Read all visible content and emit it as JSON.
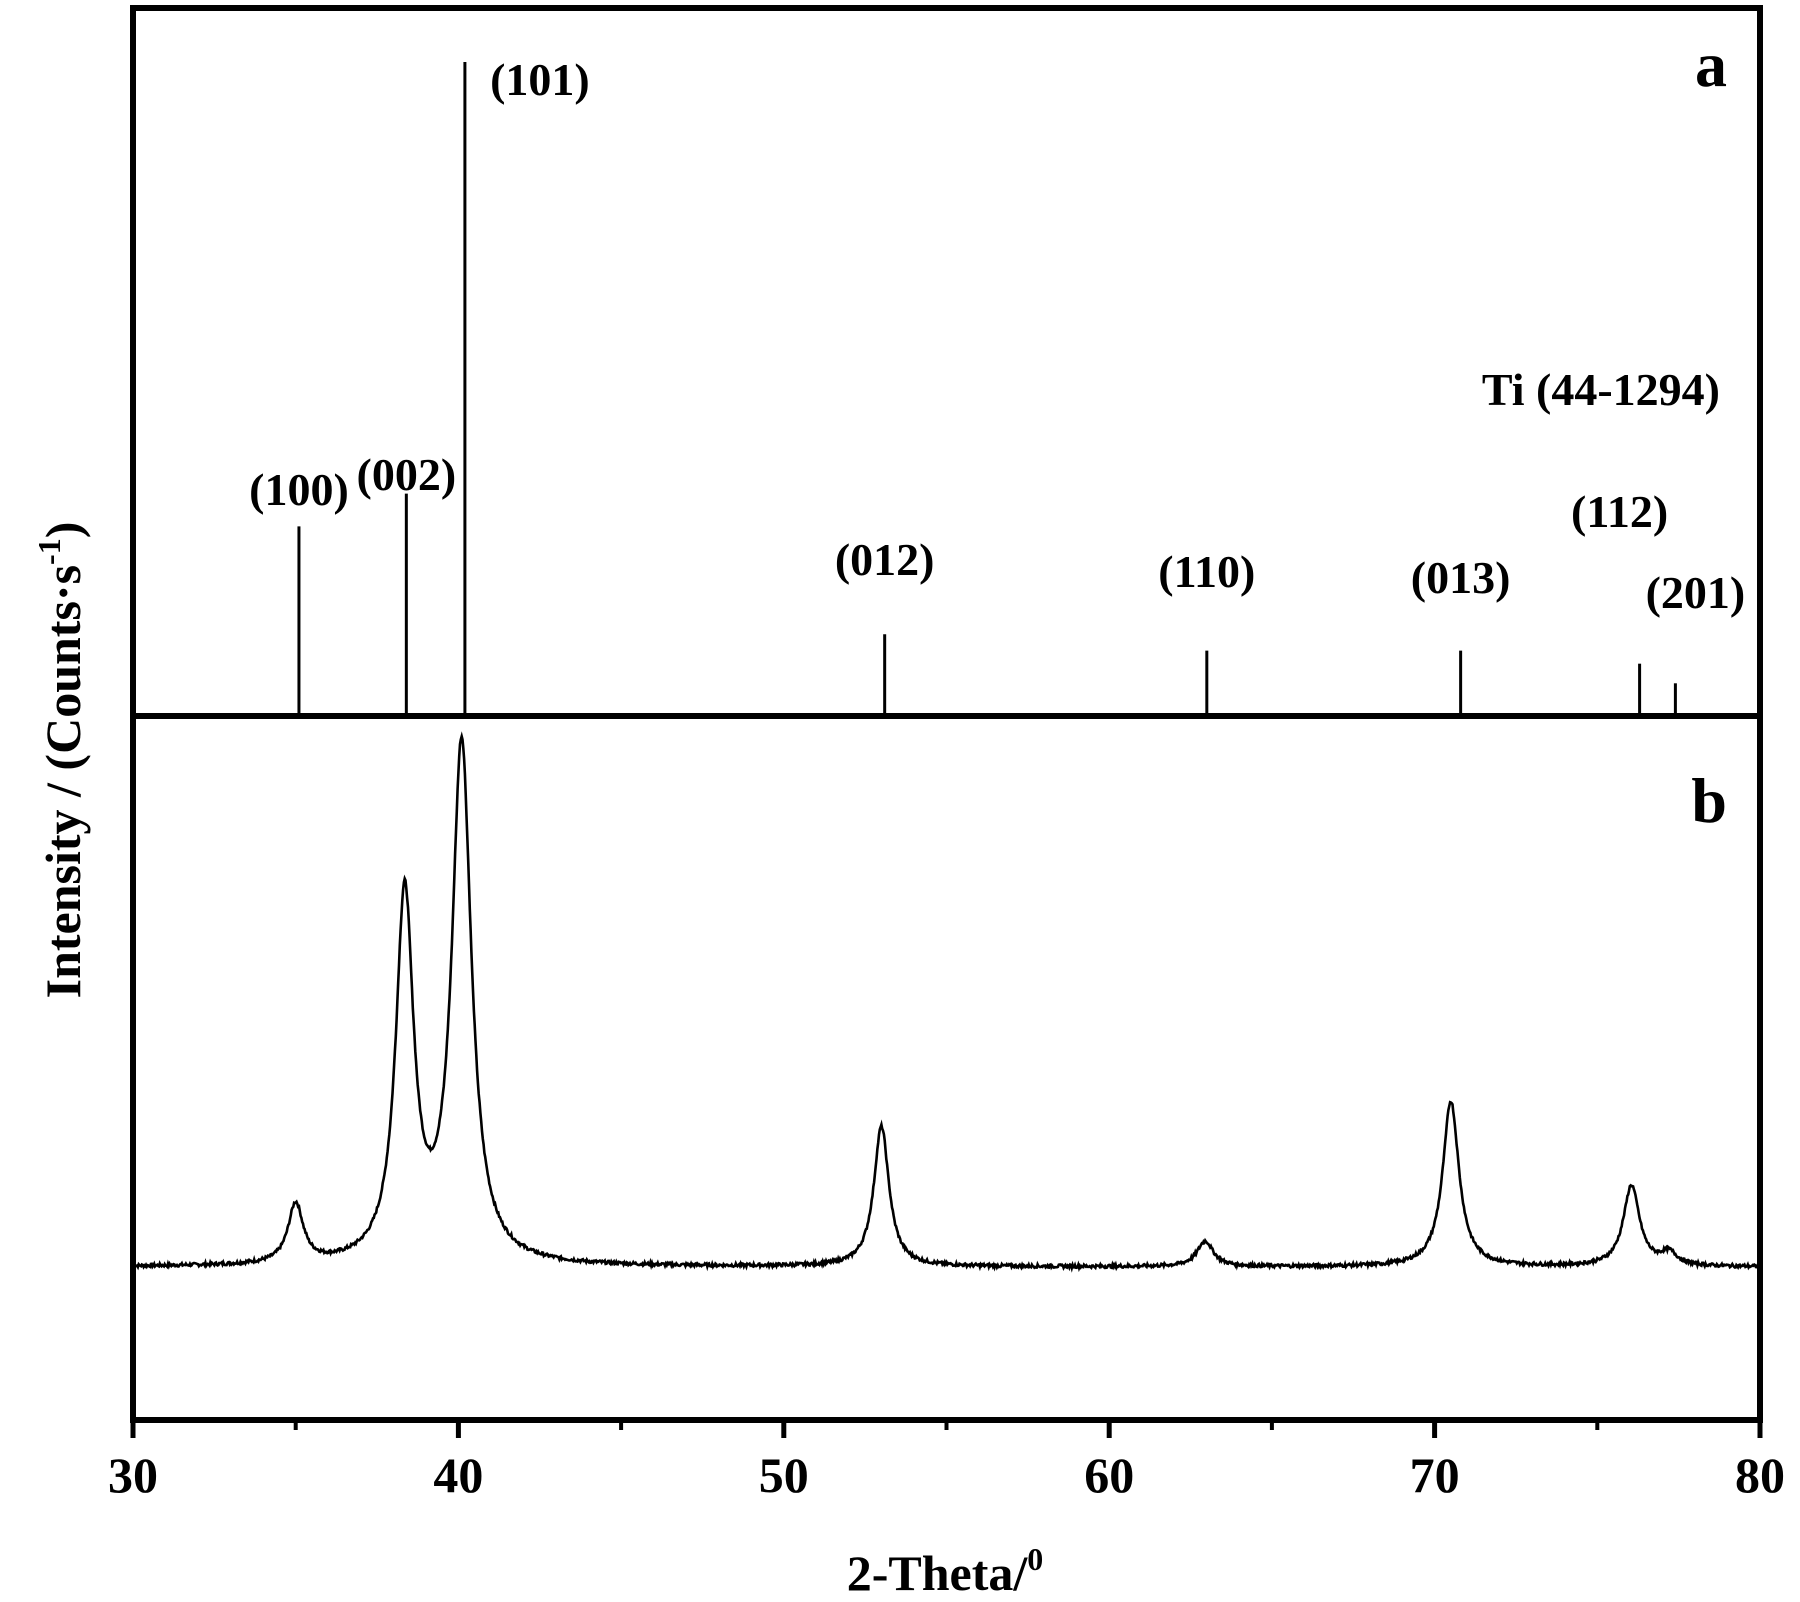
{
  "chart_data": [
    {
      "panel": "a",
      "type": "bar",
      "reference_label": "Ti (44-1294)",
      "sticks": [
        {
          "x": 35.1,
          "height": 0.29,
          "label": "(100)"
        },
        {
          "x": 38.4,
          "height": 0.34,
          "label": "(002)"
        },
        {
          "x": 40.2,
          "height": 1.0,
          "label": "(101)"
        },
        {
          "x": 53.1,
          "height": 0.125,
          "label": "(012)"
        },
        {
          "x": 63.0,
          "height": 0.1,
          "label": "(110)"
        },
        {
          "x": 70.8,
          "height": 0.1,
          "label": "(013)"
        },
        {
          "x": 76.3,
          "height": 0.08,
          "label": "(112)"
        },
        {
          "x": 77.4,
          "height": 0.05,
          "label": "(201)"
        }
      ],
      "xlim": [
        30,
        80
      ]
    },
    {
      "panel": "b",
      "type": "line",
      "baseline": 0.36,
      "peaks": [
        {
          "x": 35.0,
          "height": 0.14,
          "width": 0.28
        },
        {
          "x": 38.35,
          "height": 0.86,
          "width": 0.33
        },
        {
          "x": 40.1,
          "height": 1.22,
          "width": 0.36
        },
        {
          "x": 53.0,
          "height": 0.33,
          "width": 0.28
        },
        {
          "x": 62.95,
          "height": 0.06,
          "width": 0.3
        },
        {
          "x": 70.5,
          "height": 0.39,
          "width": 0.3
        },
        {
          "x": 76.05,
          "height": 0.19,
          "width": 0.3
        },
        {
          "x": 77.2,
          "height": 0.03,
          "width": 0.3
        }
      ],
      "xlim": [
        30,
        80
      ],
      "ylim": [
        0,
        1.65
      ]
    }
  ],
  "panel_letters": [
    "a",
    "b"
  ],
  "x_ticks": [
    "30",
    "40",
    "50",
    "60",
    "70",
    "80"
  ],
  "x_tick_values": [
    30,
    40,
    50,
    60,
    70,
    80
  ],
  "xlabel_main": "2-Theta/",
  "xlabel_sup": "0",
  "ylabel_main": "Intensity / (Counts·s",
  "ylabel_sup": "-1",
  "ylabel_end": ")"
}
